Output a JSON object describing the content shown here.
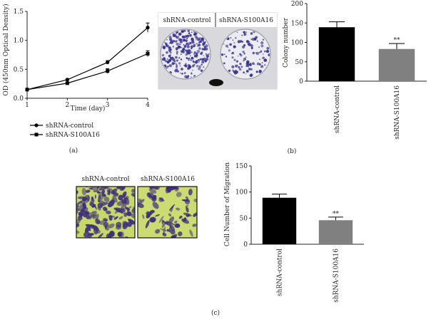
{
  "panel_labels": [
    "(a)",
    "(b)",
    "(c)"
  ],
  "photo_labels": {
    "b": [
      "shRNA-control",
      "shRNA-S100A16"
    ],
    "c": [
      "shRNA-control",
      "shRNA-S100A16"
    ]
  },
  "colors": {
    "control": "#000000",
    "s100a16": "#808080",
    "dish_bg": "#e8e8ee",
    "colony": "#3a3590",
    "migration_bg": "#c8d86a",
    "migration_cells": "#3e2f7a"
  },
  "chart_data": [
    {
      "type": "line",
      "xlabel": "Time (day)",
      "ylabel": "OD (450nm Optical Density)",
      "x": [
        1,
        2,
        3,
        4
      ],
      "xticks": [
        "1",
        "2",
        "3",
        "4"
      ],
      "ylim": [
        0,
        1.5
      ],
      "yticks": [
        "0.0",
        "0.5",
        "1.0",
        "1.5"
      ],
      "series": [
        {
          "name": "shRNA-control",
          "marker": "circle",
          "values": [
            0.15,
            0.32,
            0.62,
            1.22
          ],
          "err": [
            0.01,
            0.02,
            0.03,
            0.08
          ]
        },
        {
          "name": "shRNA-S100A16",
          "marker": "square",
          "values": [
            0.15,
            0.26,
            0.47,
            0.77
          ],
          "err": [
            0.01,
            0.02,
            0.04,
            0.05
          ]
        }
      ],
      "legend": "bottom"
    },
    {
      "type": "bar",
      "ylabel": "Colony number",
      "categories": [
        "shRNA-control",
        "shRNA-S100A16"
      ],
      "values": [
        139,
        83
      ],
      "err": [
        14,
        14
      ],
      "ylim": [
        0,
        200
      ],
      "yticks": [
        "0",
        "50",
        "100",
        "150",
        "200"
      ],
      "annotation": "**"
    },
    {
      "type": "bar",
      "ylabel": "Cell Number of Migration",
      "categories": [
        "shRNA-control",
        "shRNA-S100A16"
      ],
      "values": [
        89,
        46
      ],
      "err": [
        7,
        6
      ],
      "ylim": [
        0,
        150
      ],
      "yticks": [
        "0",
        "50",
        "100",
        "150"
      ],
      "annotation": "**"
    }
  ]
}
